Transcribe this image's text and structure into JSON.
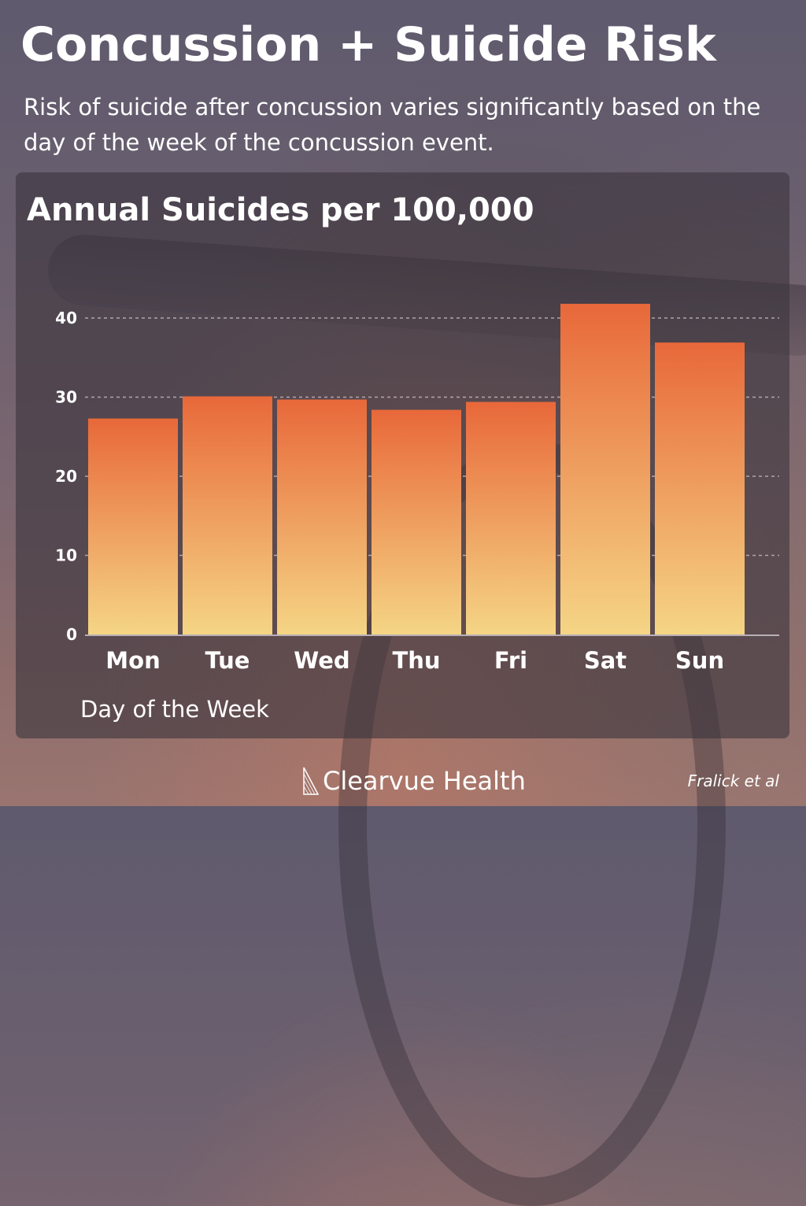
{
  "header": {
    "title": "Concussion + Suicide Risk",
    "subtitle": "Risk of suicide after concussion varies significantly based on the day of the week of the concussion event."
  },
  "footer": {
    "brand": "Clearvue Health",
    "source": "Fralick et al"
  },
  "colors": {
    "bar_top": "#e8683a",
    "bar_bottom": "#f5d585",
    "grid": "#c8c0c4"
  },
  "chart_data": {
    "type": "bar",
    "title": "Annual Suicides per 100,000",
    "xlabel": "Day of the Week",
    "ylabel": "",
    "categories": [
      "Mon",
      "Tue",
      "Wed",
      "Thu",
      "Fri",
      "Sat",
      "Sun"
    ],
    "values": [
      27.3,
      30.1,
      29.7,
      28.4,
      29.4,
      41.8,
      36.9
    ],
    "yticks": [
      0,
      10,
      20,
      30,
      40
    ],
    "ylim": [
      0,
      40
    ],
    "grid": true
  }
}
